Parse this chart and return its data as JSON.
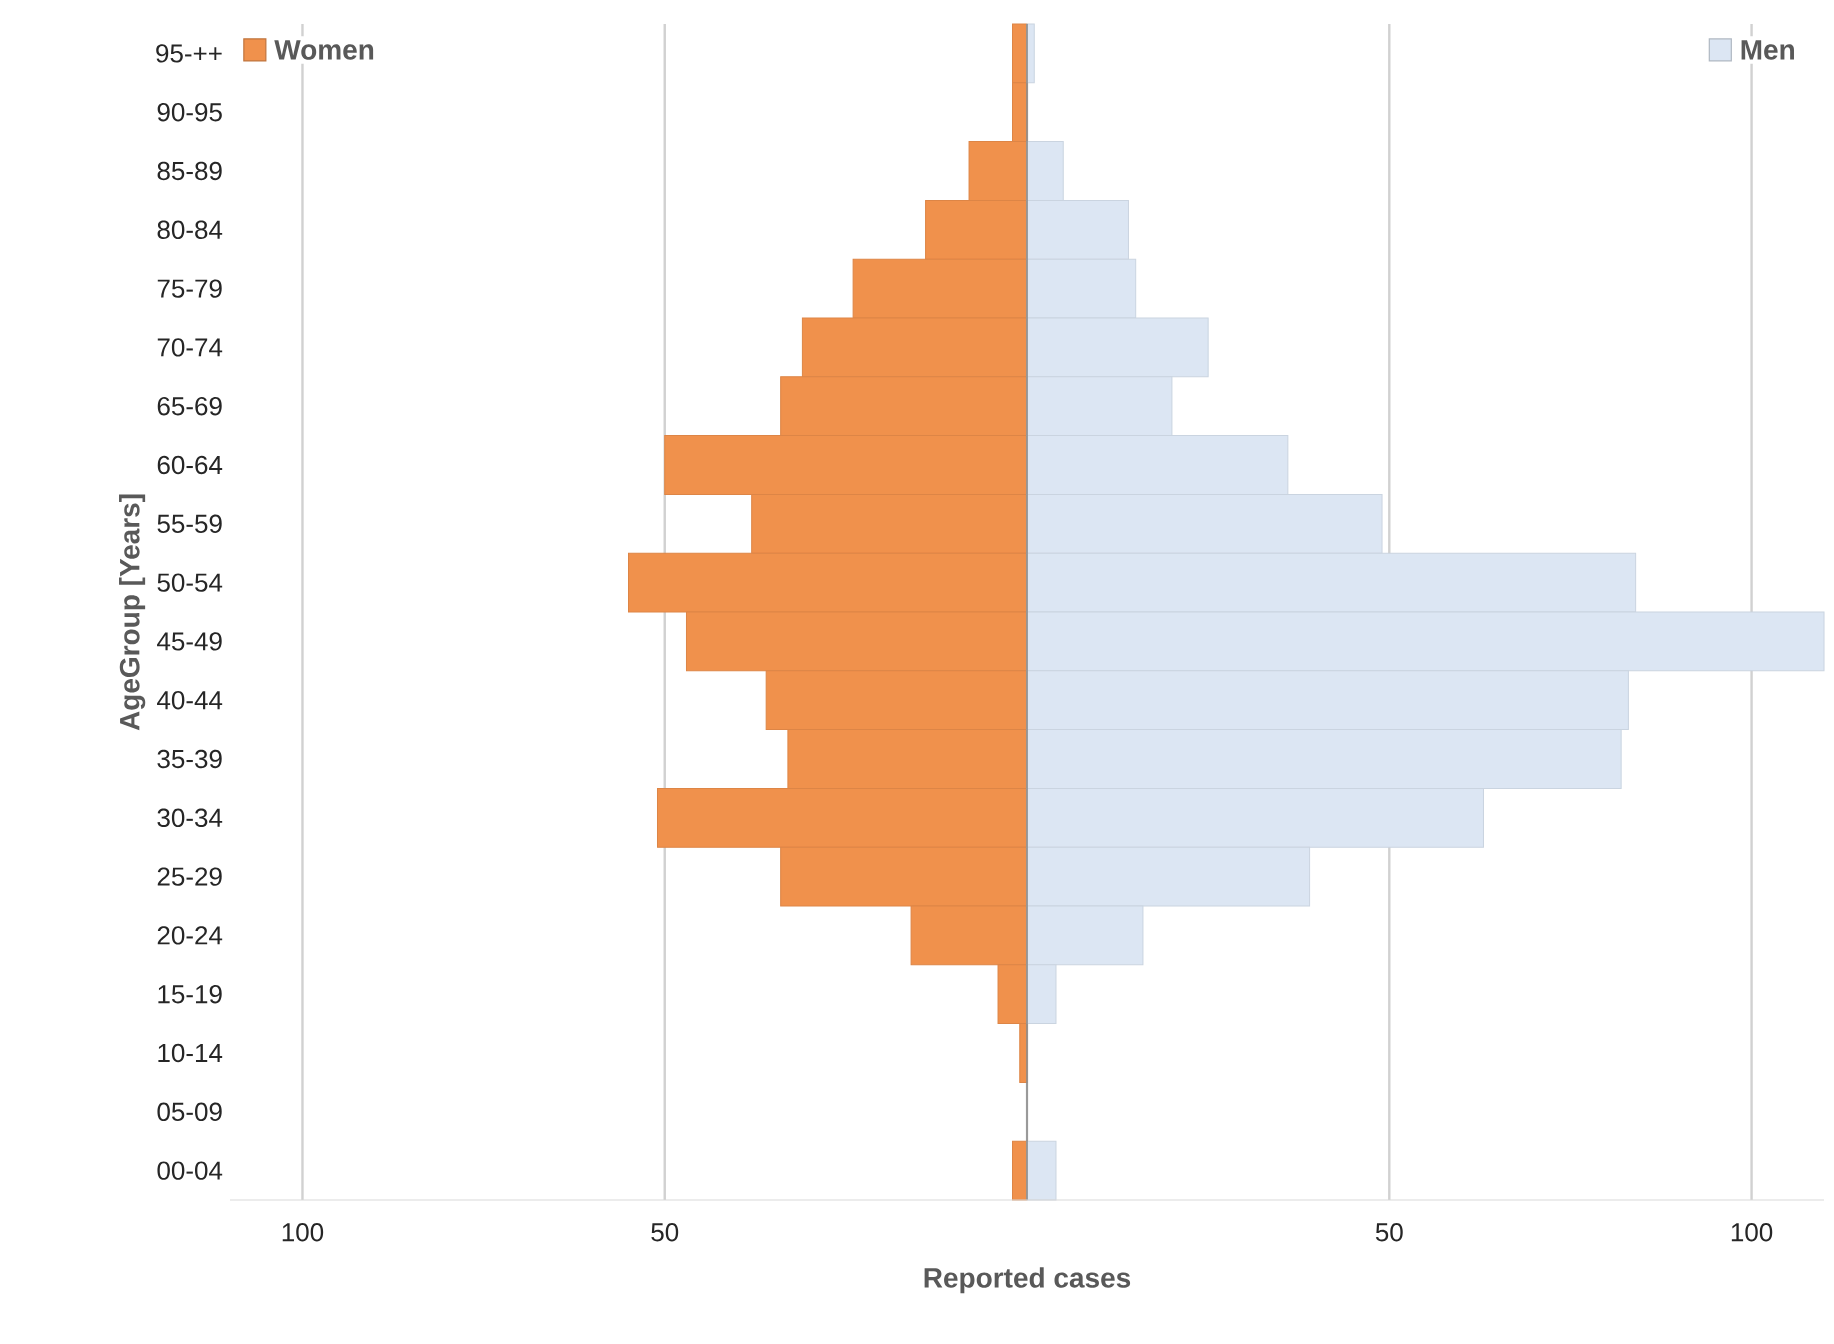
{
  "chart_data": {
    "type": "bar",
    "orientation": "horizontal",
    "stacked": true,
    "xlabel": "Reported cases",
    "ylabel": "AgeGroup [Years]",
    "categories": [
      "95-++",
      "90-95",
      "85-89",
      "80-84",
      "75-79",
      "70-74",
      "65-69",
      "60-64",
      "55-59",
      "50-54",
      "45-49",
      "40-44",
      "35-39",
      "30-34",
      "25-29",
      "20-24",
      "15-19",
      "10-14",
      "05-09",
      "00-04"
    ],
    "series": [
      {
        "name": "Women",
        "color": "#f0914c",
        "values": [
          -2,
          -2,
          -8,
          -14,
          -24,
          -31,
          -34,
          -50,
          -38,
          -55,
          -47,
          -36,
          -33,
          -51,
          -34,
          -16,
          -4,
          -1,
          0,
          -2
        ]
      },
      {
        "name": "Men",
        "color": "#dce6f3",
        "values": [
          1,
          0,
          5,
          14,
          15,
          25,
          20,
          36,
          49,
          84,
          110,
          83,
          82,
          63,
          39,
          16,
          4,
          0,
          0,
          4
        ]
      }
    ],
    "xlim": [
      -110,
      110
    ],
    "xticks": [
      {
        "value": -100,
        "label": "100"
      },
      {
        "value": -50,
        "label": "50"
      },
      {
        "value": 0,
        "label": null
      },
      50,
      100
    ],
    "grid": "x",
    "legend": "top"
  }
}
